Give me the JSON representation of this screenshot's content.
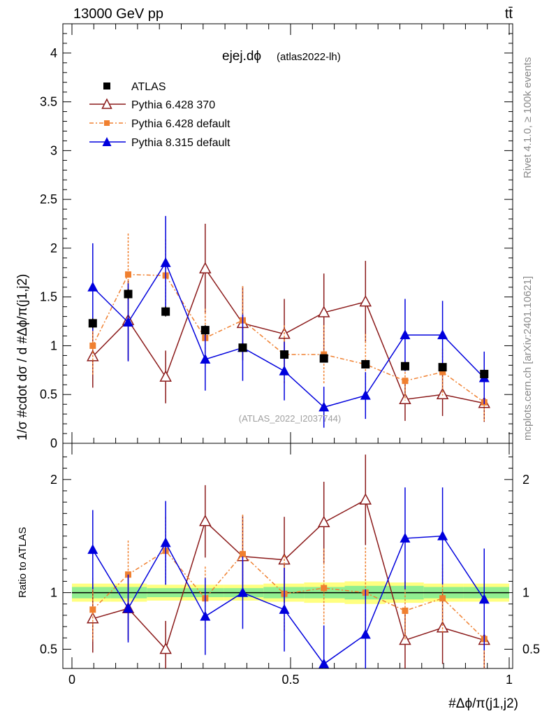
{
  "header": {
    "energy_label": "13000 GeV pp",
    "process_label": "tt̄"
  },
  "side_labels": {
    "rivet": "Rivet 4.1.0, ≥ 100k events",
    "mcplots": "mcplots.cern.ch [arXiv:2401.10621]"
  },
  "colors": {
    "atlas": "#000000",
    "py6_370": "#8b1a1a",
    "py6_default": "#f08030",
    "py8": "#0000dd",
    "band_inner": "#90ee90",
    "band_outer": "#ffff80"
  },
  "chart_data": [
    {
      "type": "scatter",
      "panel": "main",
      "title": "ejej.dϕ",
      "title_note": "(atlas2022-lh)",
      "watermark": "(ATLAS_2022_I2037744)",
      "ylabel": "1/σ #cdot dσ / d #Δϕ/π(j1,j2)",
      "xlim": [
        0,
        1
      ],
      "ylim": [
        0,
        4.3
      ],
      "y_ticks": [
        "0",
        "0.5",
        "1",
        "1.5",
        "2",
        "2.5",
        "3",
        "3.5",
        "4"
      ],
      "x": [
        0.0476,
        0.1286,
        0.2143,
        0.3048,
        0.3905,
        0.4857,
        0.5762,
        0.6714,
        0.7619,
        0.8476,
        0.9429
      ],
      "series": [
        {
          "name": "ATLAS",
          "marker": "square",
          "values": [
            1.23,
            1.53,
            1.35,
            1.16,
            0.98,
            0.91,
            0.87,
            0.81,
            0.79,
            0.78,
            0.71
          ],
          "errors": [
            0.05,
            0.05,
            0.05,
            0.05,
            0.04,
            0.04,
            0.04,
            0.04,
            0.04,
            0.04,
            0.03
          ]
        },
        {
          "name": "Pythia 6.428 370",
          "marker": "triangle-open",
          "values": [
            0.89,
            1.26,
            0.68,
            1.79,
            1.23,
            1.12,
            1.34,
            1.45,
            0.45,
            0.5,
            0.41
          ],
          "errors": [
            0.32,
            0.41,
            0.27,
            0.46,
            0.38,
            0.36,
            0.4,
            0.42,
            0.22,
            0.22,
            0.19
          ]
        },
        {
          "name": "Pythia 6.428 default",
          "marker": "square-small",
          "values": [
            1.0,
            1.73,
            1.72,
            1.08,
            1.26,
            0.91,
            0.91,
            0.81,
            0.64,
            0.73,
            0.42
          ],
          "errors": [
            0.3,
            0.42,
            0.37,
            0.3,
            0.35,
            0.3,
            0.3,
            0.31,
            0.2,
            0.24,
            0.19
          ]
        },
        {
          "name": "Pythia 8.315 default",
          "marker": "triangle",
          "values": [
            1.6,
            1.24,
            1.85,
            0.86,
            0.98,
            0.74,
            0.37,
            0.49,
            1.11,
            1.11,
            0.67
          ],
          "errors": [
            0.45,
            0.4,
            0.48,
            0.32,
            0.34,
            0.3,
            0.21,
            0.24,
            0.37,
            0.35,
            0.27
          ]
        }
      ]
    },
    {
      "type": "scatter",
      "panel": "ratio",
      "ylabel": "Ratio to ATLAS",
      "xlabel": "#Δϕ/π(j1,j2)",
      "xlim": [
        0,
        1
      ],
      "ylim": [
        0.33,
        2.32
      ],
      "y_ticks": [
        "0.5",
        "1",
        "2"
      ],
      "x_ticks": [
        "0",
        "0.5",
        "1"
      ],
      "band_inner": [
        0.05,
        0.05,
        0.04,
        0.04,
        0.04,
        0.05,
        0.05,
        0.06,
        0.06,
        0.05,
        0.05
      ],
      "band_outer": [
        0.08,
        0.08,
        0.07,
        0.07,
        0.07,
        0.08,
        0.09,
        0.1,
        0.09,
        0.08,
        0.08
      ],
      "series": [
        {
          "name": "Pythia 6.428 370",
          "values": [
            0.77,
            0.86,
            0.5,
            1.63,
            1.32,
            1.29,
            1.62,
            1.82,
            0.58,
            0.69,
            0.58
          ],
          "errors": [
            0.3,
            0.28,
            0.25,
            0.32,
            0.36,
            0.38,
            0.36,
            0.4,
            0.28,
            0.32,
            0.28
          ]
        },
        {
          "name": "Pythia 6.428 default",
          "values": [
            0.85,
            1.16,
            1.37,
            0.95,
            1.34,
            0.99,
            1.04,
            1.0,
            0.84,
            0.95,
            0.59
          ],
          "errors": [
            0.28,
            0.3,
            0.3,
            0.28,
            0.35,
            0.34,
            0.35,
            0.4,
            0.26,
            0.3,
            0.27
          ]
        },
        {
          "name": "Pythia 8.315 default",
          "values": [
            1.38,
            0.86,
            1.44,
            0.79,
            1.0,
            0.85,
            0.37,
            0.63,
            1.48,
            1.5,
            0.94
          ],
          "errors": [
            0.35,
            0.3,
            0.37,
            0.34,
            0.32,
            0.37,
            0.34,
            0.4,
            0.45,
            0.43,
            0.45
          ]
        }
      ]
    }
  ]
}
